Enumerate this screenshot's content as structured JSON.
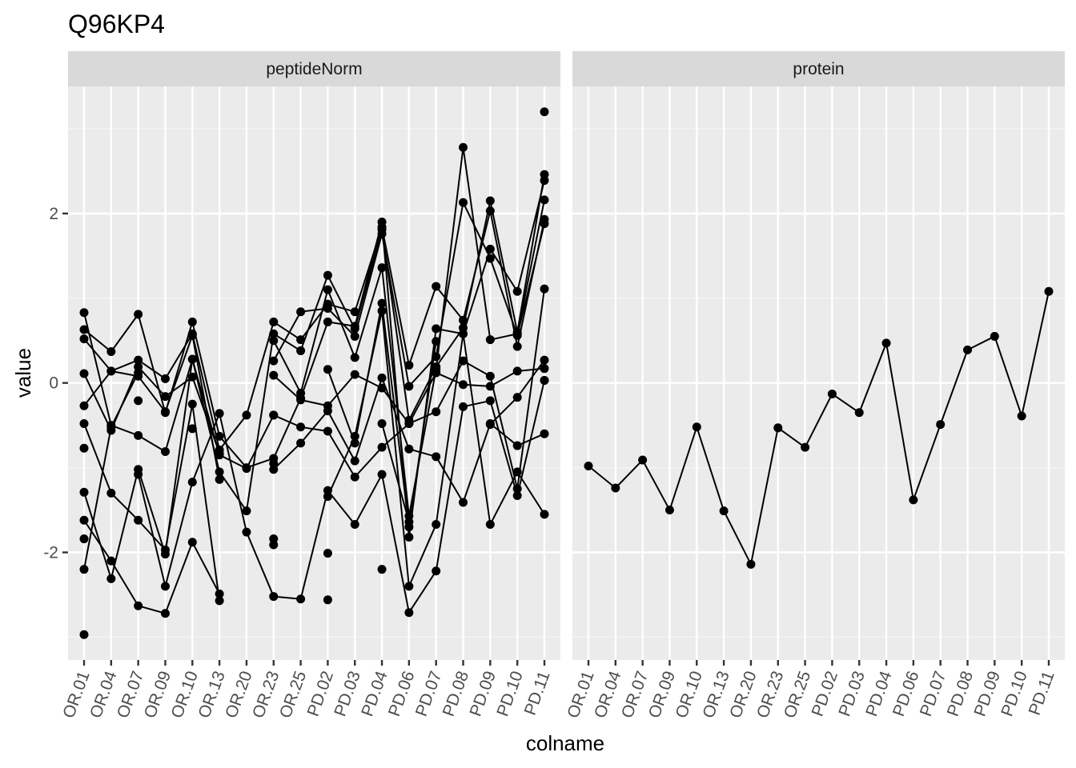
{
  "chart_data": {
    "type": "line",
    "title": "Q96KP4",
    "xlabel": "colname",
    "ylabel": "value",
    "ylim": [
      -3.27,
      3.5
    ],
    "y_ticks": [
      -2,
      0,
      2
    ],
    "grid": true,
    "categories": [
      "OR.01",
      "OR.04",
      "OR.07",
      "OR.09",
      "OR.10",
      "OR.13",
      "OR.20",
      "OR.23",
      "OR.25",
      "PD.02",
      "PD.03",
      "PD.04",
      "PD.06",
      "PD.07",
      "PD.08",
      "PD.09",
      "PD.10",
      "PD.11"
    ],
    "panels": [
      {
        "name": "peptideNorm",
        "series": [
          {
            "values": [
              -1.29,
              -2.31,
              -1.02,
              -2.02,
              0.28,
              -0.85,
              -1.01,
              -0.38,
              -0.52,
              -0.57,
              -1.11,
              -0.76,
              -0.48,
              -0.34,
              0.26,
              0.08,
              -1.25,
              1.11
            ]
          },
          {
            "values": [
              -1.62,
              -2.1,
              -2.63,
              -2.72,
              -1.88,
              -2.49,
              null,
              -1.02,
              -0.71,
              -0.33,
              -0.92,
              0.06,
              -0.78,
              -0.87,
              -1.41,
              -0.48,
              -0.74,
              -0.6
            ]
          },
          {
            "values": [
              -1.84,
              null,
              -1.08,
              -2.4,
              -1.17,
              -0.36,
              -1.76,
              -2.52,
              -2.55,
              -1.27,
              -1.67,
              -1.08,
              -2.71,
              -2.22,
              -0.28,
              -0.21,
              -1.33,
              0.03
            ]
          },
          {
            "values": [
              0.83,
              -0.5,
              -0.62,
              -0.81,
              0.28,
              -1.05,
              -1.51,
              0.58,
              0.38,
              1.27,
              0.64,
              1.81,
              -0.44,
              0.19,
              0.65,
              2.15,
              0.6,
              2.46
            ]
          },
          {
            "values": [
              0.63,
              0.37,
              0.81,
              -0.35,
              0.72,
              -0.63,
              -1.0,
              -0.89,
              -0.18,
              0.72,
              0.67,
              1.9,
              -1.82,
              0.64,
              0.58,
              1.58,
              1.08,
              2.39
            ]
          },
          {
            "values": [
              0.52,
              0.14,
              0.27,
              0.05,
              0.58,
              -0.79,
              -0.38,
              0.72,
              0.51,
              0.93,
              0.84,
              1.84,
              0.21,
              1.14,
              0.74,
              2.03,
              0.43,
              1.93
            ]
          },
          {
            "values": [
              0.11,
              -0.56,
              0.19,
              -0.16,
              0.07,
              -0.83,
              null,
              0.26,
              0.84,
              0.88,
              0.55,
              1.76,
              -0.04,
              0.31,
              2.13,
              1.47,
              0.56,
              1.88
            ]
          },
          {
            "values": [
              -0.27,
              0.14,
              0.08,
              -0.34,
              0.56,
              -1.14,
              null,
              0.5,
              -0.12,
              1.1,
              0.3,
              1.36,
              -1.57,
              0.16,
              2.78,
              0.51,
              0.58,
              2.16
            ]
          },
          {
            "values": [
              -0.48,
              -1.3,
              -1.62,
              -1.97,
              -0.25,
              -2.57,
              null,
              0.09,
              -0.2,
              -0.27,
              0.1,
              -0.06,
              -0.48,
              0.12,
              -0.02,
              -0.04,
              0.14,
              0.17
            ]
          },
          {
            "values": [
              -0.77,
              null,
              -0.21,
              null,
              -0.54,
              null,
              null,
              -0.38,
              null,
              0.16,
              -0.71,
              0.94,
              -1.7,
              0.49,
              null,
              -0.49,
              -0.17,
              0.27
            ]
          },
          {
            "values": [
              -2.2,
              -0.52,
              0.12,
              null,
              null,
              null,
              null,
              -1.91,
              null,
              -1.34,
              -0.63,
              0.85,
              -2.4,
              -1.67,
              0.58,
              -1.67,
              -1.05,
              -1.55
            ]
          },
          {
            "values": [
              -2.97,
              null,
              null,
              null,
              null,
              null,
              null,
              -1.84,
              null,
              -2.56,
              null,
              -2.2,
              null,
              null,
              null,
              null,
              null,
              3.2
            ]
          },
          {
            "values": [
              null,
              null,
              null,
              null,
              null,
              null,
              null,
              -0.95,
              null,
              -2.01,
              null,
              -0.48,
              -1.64,
              null,
              null,
              null,
              null,
              0.03
            ]
          }
        ]
      },
      {
        "name": "protein",
        "series": [
          {
            "values": [
              -0.98,
              -1.24,
              -0.91,
              -1.5,
              -0.52,
              -1.51,
              -2.14,
              -0.53,
              -0.76,
              -0.13,
              -0.35,
              0.47,
              -1.38,
              -0.49,
              0.39,
              0.55,
              -0.39,
              1.08
            ]
          }
        ]
      }
    ]
  }
}
